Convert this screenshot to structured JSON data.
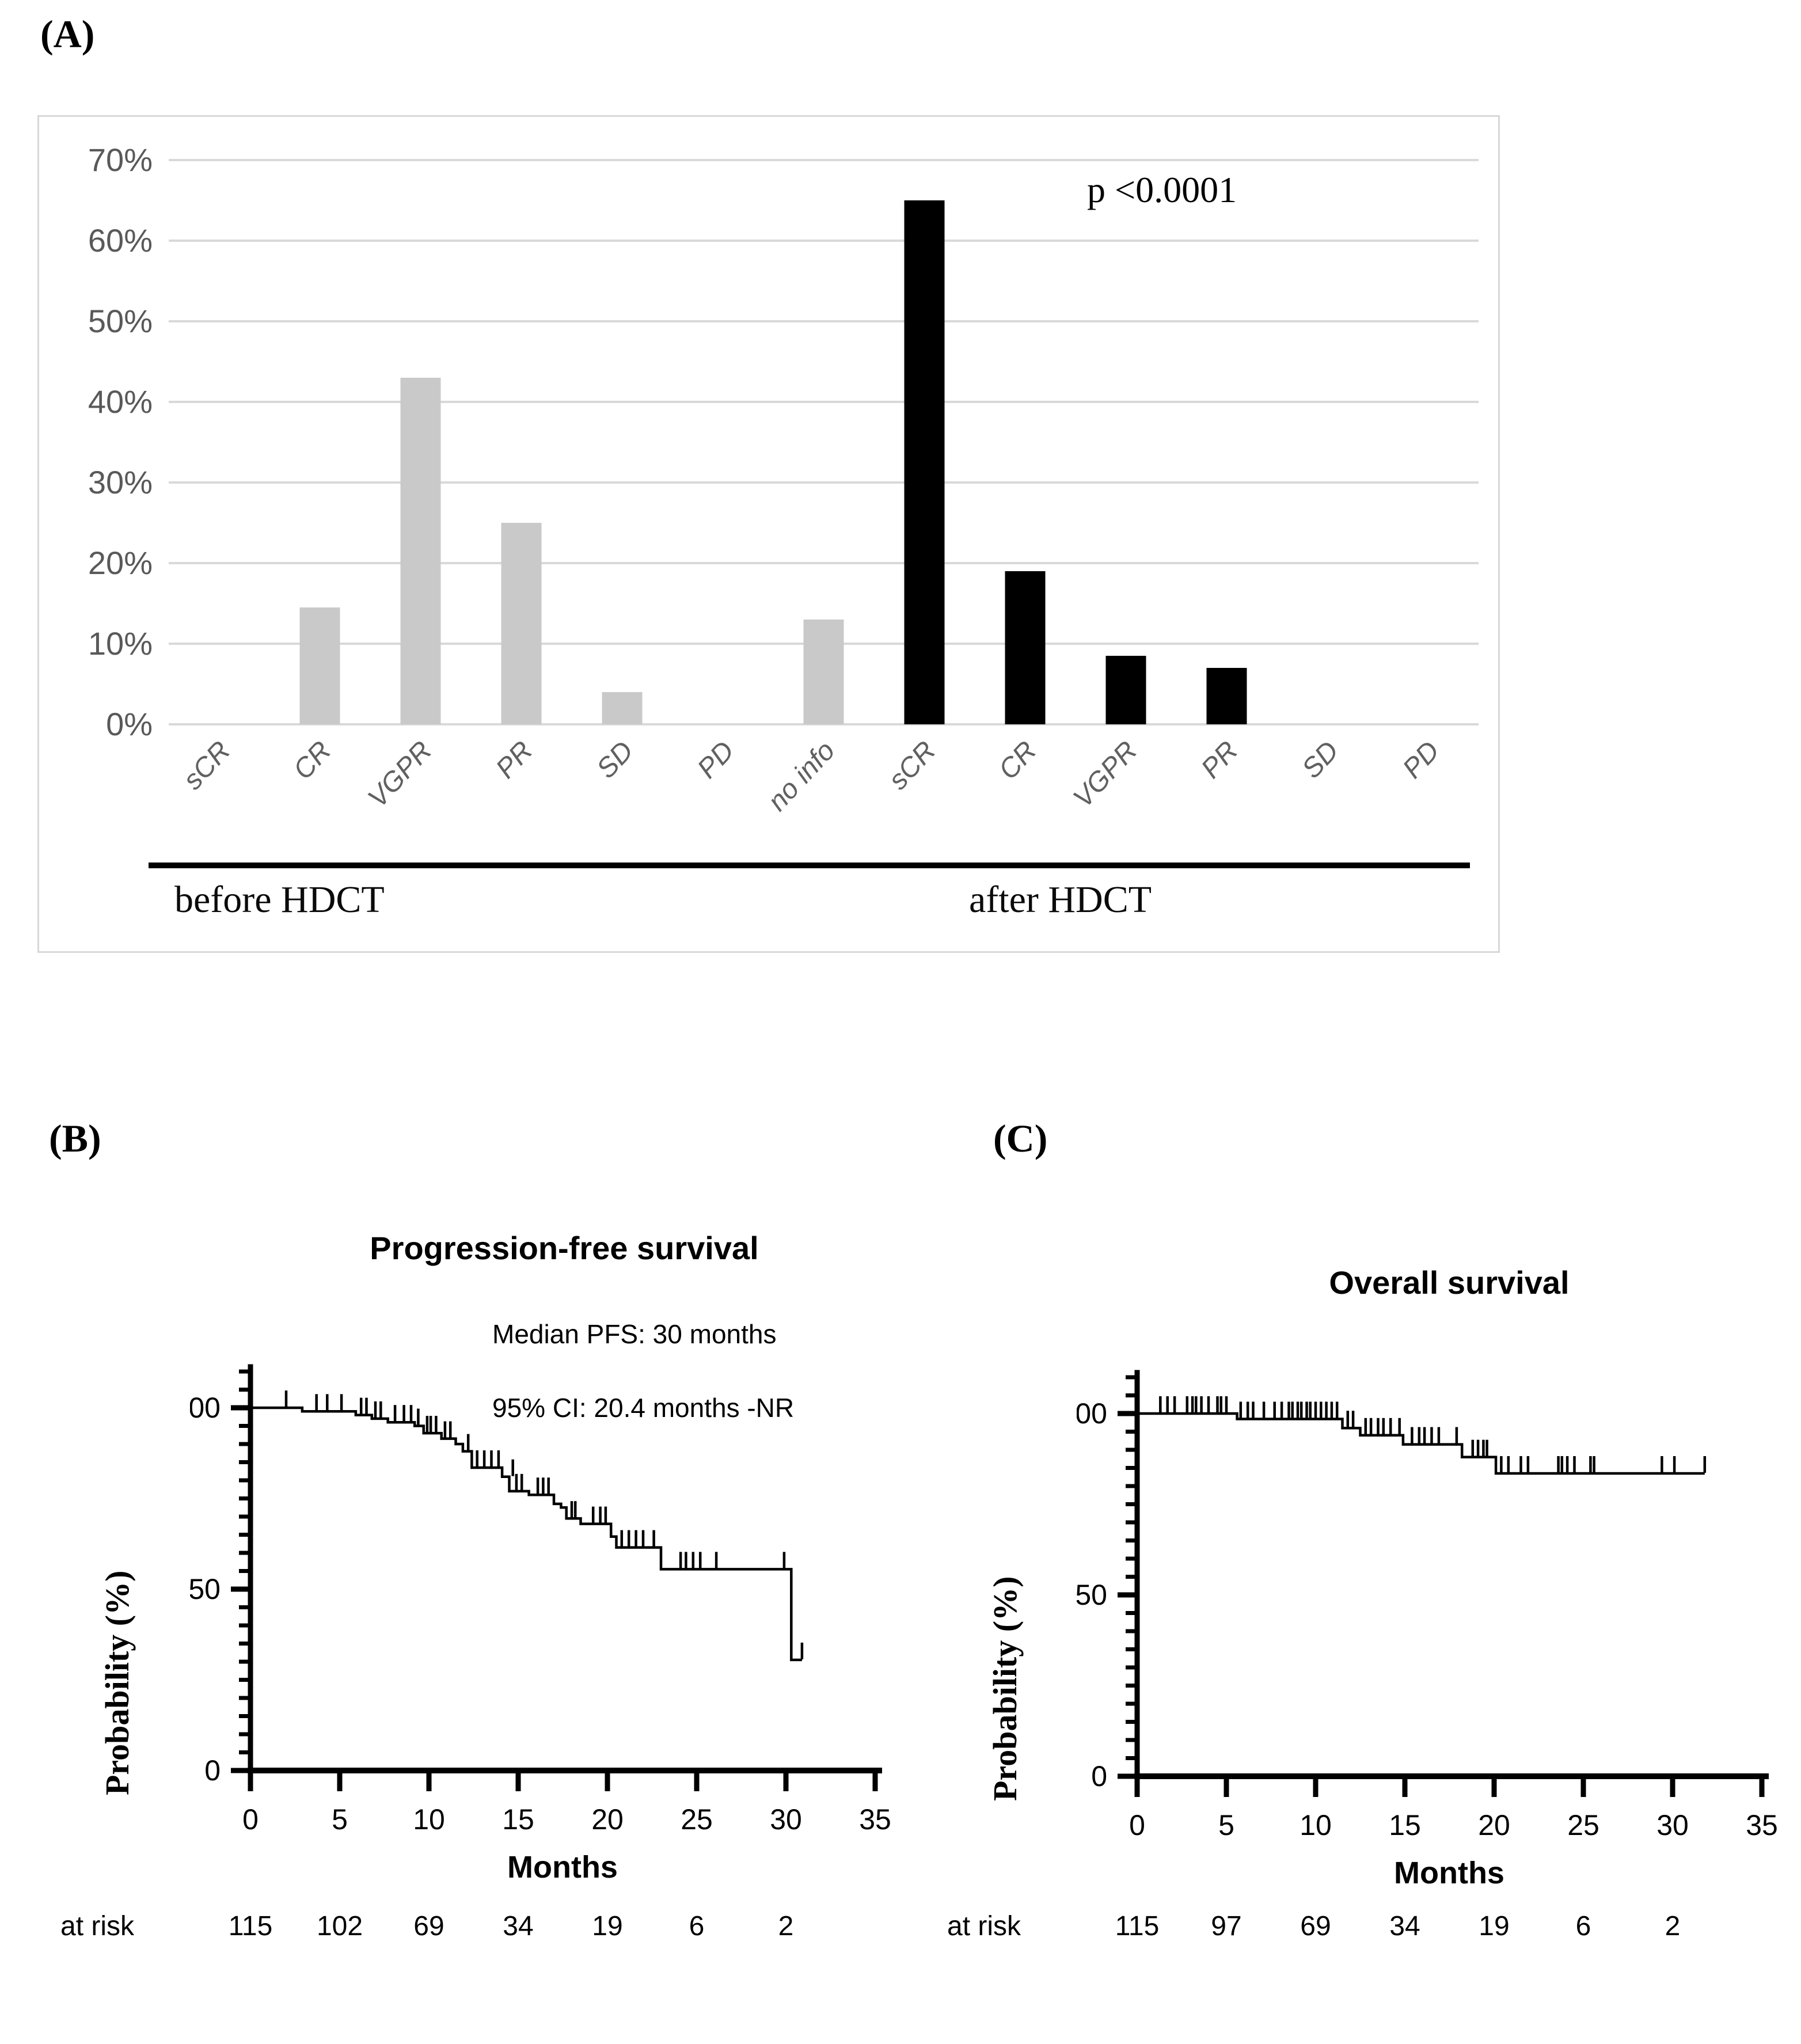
{
  "panel_labels": {
    "a": "(A)",
    "b": "(B)",
    "c": "(C)"
  },
  "colors": {
    "bar_before": "#c9c9c9",
    "bar_after": "#000000",
    "grid": "#d9d9d9",
    "axis_tick_text": "#595959",
    "category_text": "#606060",
    "km_line": "#000000",
    "box_border": "#d8d8d8"
  },
  "chart_data": [
    {
      "id": "response-rates-bar",
      "type": "bar",
      "annotation": "p <0.0001",
      "categories": [
        "sCR",
        "CR",
        "VGPR",
        "PR",
        "SD",
        "PD",
        "no info",
        "sCR",
        "CR",
        "VGPR",
        "PR",
        "SD",
        "PD"
      ],
      "values": [
        0,
        14.5,
        43,
        25,
        4,
        0,
        13,
        65,
        19,
        8.5,
        7,
        0,
        0
      ],
      "groups": [
        {
          "label": "before HDCT",
          "from": 0,
          "to": 6
        },
        {
          "label": "after HDCT",
          "from": 7,
          "to": 12
        }
      ],
      "yticks": [
        0,
        10,
        20,
        30,
        40,
        50,
        60,
        70
      ],
      "ytick_suffix": "%",
      "ylim": [
        0,
        70
      ],
      "grid": true,
      "legend": "none"
    },
    {
      "id": "pfs-km",
      "type": "line",
      "title": "Progression-free survival",
      "annotations": [
        "Median PFS: 30 months",
        "95% CI: 20.4 months -NR"
      ],
      "xlabel": "Months",
      "ylabel": "Probability (%)",
      "at_risk_label": "at risk",
      "at_risk": [
        115,
        102,
        69,
        34,
        19,
        6,
        2
      ],
      "xlim": [
        0,
        35
      ],
      "xticks": [
        0,
        5,
        10,
        15,
        20,
        25,
        30,
        35
      ],
      "ylim": [
        0,
        112
      ],
      "yticks_major": [
        0,
        50,
        100
      ],
      "ytick_minor_step": 5,
      "steps": [
        [
          0,
          100
        ],
        [
          2.9,
          100
        ],
        [
          2.9,
          99
        ],
        [
          5.9,
          99
        ],
        [
          5.9,
          98
        ],
        [
          6.8,
          98
        ],
        [
          6.8,
          97
        ],
        [
          7.7,
          97
        ],
        [
          7.7,
          96
        ],
        [
          9.2,
          96
        ],
        [
          9.2,
          95
        ],
        [
          9.7,
          95
        ],
        [
          9.7,
          93
        ],
        [
          10.7,
          93
        ],
        [
          10.7,
          91.5
        ],
        [
          11.5,
          91.5
        ],
        [
          11.5,
          90
        ],
        [
          11.9,
          90
        ],
        [
          11.9,
          88
        ],
        [
          12.4,
          88
        ],
        [
          12.4,
          83.5
        ],
        [
          14.1,
          83.5
        ],
        [
          14.1,
          81
        ],
        [
          14.5,
          81
        ],
        [
          14.5,
          77
        ],
        [
          15.6,
          77
        ],
        [
          15.6,
          76
        ],
        [
          17,
          76
        ],
        [
          17,
          73.5
        ],
        [
          17.4,
          73.5
        ],
        [
          17.4,
          72.5
        ],
        [
          17.7,
          72.5
        ],
        [
          17.7,
          69.5
        ],
        [
          18.5,
          69.5
        ],
        [
          18.5,
          68
        ],
        [
          20.2,
          68
        ],
        [
          20.2,
          64.5
        ],
        [
          20.5,
          64.5
        ],
        [
          20.5,
          61.5
        ],
        [
          23,
          61.5
        ],
        [
          23,
          55.5
        ],
        [
          30.3,
          55.5
        ],
        [
          30.3,
          30.5
        ],
        [
          30.9,
          30.5
        ]
      ],
      "censors": [
        [
          2,
          100
        ],
        [
          3.7,
          99
        ],
        [
          4.3,
          99
        ],
        [
          5.1,
          99
        ],
        [
          6.2,
          98
        ],
        [
          6.5,
          98
        ],
        [
          7,
          97
        ],
        [
          7.3,
          97
        ],
        [
          8.1,
          96
        ],
        [
          8.6,
          96
        ],
        [
          9,
          96
        ],
        [
          9.4,
          95
        ],
        [
          9.9,
          93
        ],
        [
          10.1,
          93
        ],
        [
          10.4,
          93
        ],
        [
          10.9,
          91.5
        ],
        [
          11.2,
          91.5
        ],
        [
          12.2,
          88
        ],
        [
          12.7,
          83.5
        ],
        [
          13.1,
          83.5
        ],
        [
          13.5,
          83.5
        ],
        [
          13.9,
          83.5
        ],
        [
          14.7,
          81
        ],
        [
          14.9,
          77
        ],
        [
          15.2,
          77
        ],
        [
          16.1,
          76
        ],
        [
          16.4,
          76
        ],
        [
          16.7,
          76
        ],
        [
          18,
          69.5
        ],
        [
          18.2,
          69.5
        ],
        [
          19.2,
          68
        ],
        [
          19.6,
          68
        ],
        [
          19.9,
          68
        ],
        [
          20.8,
          61.5
        ],
        [
          21.2,
          61.5
        ],
        [
          21.6,
          61.5
        ],
        [
          22,
          61.5
        ],
        [
          22.6,
          61.5
        ],
        [
          24.1,
          55.5
        ],
        [
          24.4,
          55.5
        ],
        [
          24.8,
          55.5
        ],
        [
          25.2,
          55.5
        ],
        [
          26.1,
          55.5
        ],
        [
          29.9,
          55.5
        ],
        [
          30.9,
          30.5
        ]
      ]
    },
    {
      "id": "os-km",
      "type": "line",
      "title": "Overall survival",
      "annotations": [],
      "xlabel": "Months",
      "ylabel": "Probability (%)",
      "at_risk_label": "at risk",
      "at_risk": [
        115,
        97,
        69,
        34,
        19,
        6,
        2
      ],
      "xlim": [
        0,
        35
      ],
      "xticks": [
        0,
        5,
        10,
        15,
        20,
        25,
        30,
        35
      ],
      "ylim": [
        0,
        112
      ],
      "yticks_major": [
        0,
        50,
        100
      ],
      "ytick_minor_step": 5,
      "steps": [
        [
          0,
          100
        ],
        [
          5.6,
          100
        ],
        [
          5.6,
          98.5
        ],
        [
          11.5,
          98.5
        ],
        [
          11.5,
          96
        ],
        [
          12.5,
          96
        ],
        [
          12.5,
          94
        ],
        [
          14.9,
          94
        ],
        [
          14.9,
          91.5
        ],
        [
          18.2,
          91.5
        ],
        [
          18.2,
          88
        ],
        [
          20.1,
          88
        ],
        [
          20.1,
          83.5
        ],
        [
          31.8,
          83.5
        ]
      ],
      "censors": [
        [
          1.3,
          100
        ],
        [
          1.7,
          100
        ],
        [
          2.1,
          100
        ],
        [
          2.8,
          100
        ],
        [
          3.1,
          100
        ],
        [
          3.3,
          100
        ],
        [
          3.6,
          100
        ],
        [
          4,
          100
        ],
        [
          4.5,
          100
        ],
        [
          4.7,
          100
        ],
        [
          5,
          100
        ],
        [
          5.8,
          98.5
        ],
        [
          6.2,
          98.5
        ],
        [
          6.5,
          98.5
        ],
        [
          7.1,
          98.5
        ],
        [
          7.7,
          98.5
        ],
        [
          8.1,
          98.5
        ],
        [
          8.5,
          98.5
        ],
        [
          8.7,
          98.5
        ],
        [
          9,
          98.5
        ],
        [
          9.2,
          98.5
        ],
        [
          9.5,
          98.5
        ],
        [
          9.7,
          98.5
        ],
        [
          10,
          98.5
        ],
        [
          10.3,
          98.5
        ],
        [
          10.6,
          98.5
        ],
        [
          10.9,
          98.5
        ],
        [
          11.2,
          98.5
        ],
        [
          11.8,
          96
        ],
        [
          12.1,
          96
        ],
        [
          12.8,
          94
        ],
        [
          13.1,
          94
        ],
        [
          13.5,
          94
        ],
        [
          13.8,
          94
        ],
        [
          14.2,
          94
        ],
        [
          14.7,
          94
        ],
        [
          15.4,
          91.5
        ],
        [
          15.8,
          91.5
        ],
        [
          16.1,
          91.5
        ],
        [
          16.5,
          91.5
        ],
        [
          16.9,
          91.5
        ],
        [
          17.9,
          91.5
        ],
        [
          18.8,
          88
        ],
        [
          19.1,
          88
        ],
        [
          19.4,
          88
        ],
        [
          19.6,
          88
        ],
        [
          20.4,
          83.5
        ],
        [
          20.8,
          83.5
        ],
        [
          21.5,
          83.5
        ],
        [
          21.9,
          83.5
        ],
        [
          23.6,
          83.5
        ],
        [
          23.8,
          83.5
        ],
        [
          24.1,
          83.5
        ],
        [
          24.5,
          83.5
        ],
        [
          25.4,
          83.5
        ],
        [
          25.6,
          83.5
        ],
        [
          29.4,
          83.5
        ],
        [
          30.1,
          83.5
        ],
        [
          31.8,
          83.5
        ]
      ]
    }
  ]
}
